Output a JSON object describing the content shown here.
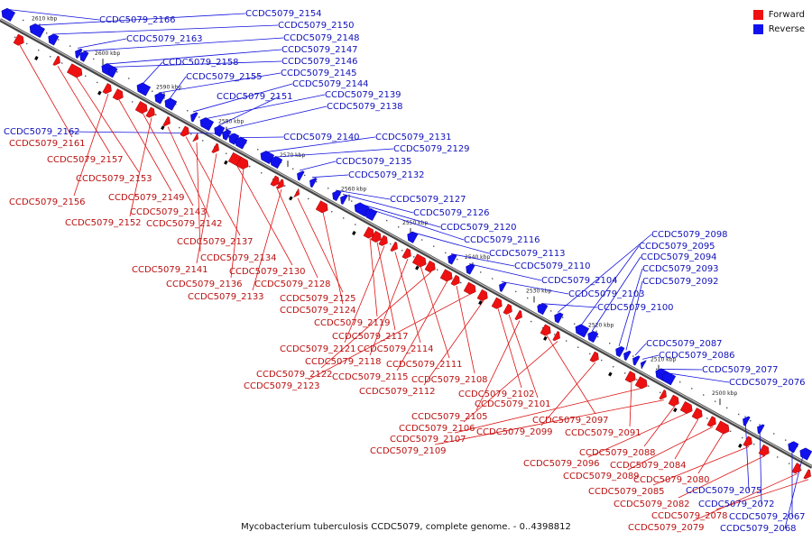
{
  "colors": {
    "forward": "#ee1111",
    "reverse": "#1111ee",
    "backbone": "#777777"
  },
  "legend": {
    "forward": "Forward",
    "reverse": "Reverse"
  },
  "caption": "Mycobacterium tuberculosis CCDC5079, complete genome. - 0..4398812",
  "ticks": [
    "2610 kbp",
    "2600 kbp",
    "2590 kbp",
    "2580 kbp",
    "2570 kbp",
    "2560 kbp",
    "2550 kbp",
    "2540 kbp",
    "2530 kbp",
    "2520 kbp",
    "2510 kbp",
    "2500 kbp"
  ],
  "reverse_genes": [
    "CCDC5079_2166",
    "CCDC5079_2154",
    "CCDC5079_2150",
    "CCDC5079_2163",
    "CCDC5079_2148",
    "CCDC5079_2147",
    "CCDC5079_2146",
    "CCDC5079_2158",
    "CCDC5079_2145",
    "CCDC5079_2155",
    "CCDC5079_2144",
    "CCDC5079_2139",
    "CCDC5079_2151",
    "CCDC5079_2138",
    "CCDC5079_2162",
    "CCDC5079_2140",
    "CCDC5079_2131",
    "CCDC5079_2129",
    "CCDC5079_2135",
    "CCDC5079_2132",
    "CCDC5079_2127",
    "CCDC5079_2126",
    "CCDC5079_2120",
    "CCDC5079_2116",
    "CCDC5079_2113",
    "CCDC5079_2110",
    "CCDC5079_2104",
    "CCDC5079_2103",
    "CCDC5079_2100",
    "CCDC5079_2098",
    "CCDC5079_2095",
    "CCDC5079_2094",
    "CCDC5079_2093",
    "CCDC5079_2092",
    "CCDC5079_2087",
    "CCDC5079_2086",
    "CCDC5079_2077",
    "CCDC5079_2076",
    "CCDC5079_2075",
    "CCDC5079_2072",
    "CCDC5079_2067",
    "CCDC5079_2068"
  ],
  "forward_genes": [
    "CCDC5079_2161",
    "CCDC5079_2157",
    "CCDC5079_2153",
    "CCDC5079_2156",
    "CCDC5079_2149",
    "CCDC5079_2143",
    "CCDC5079_2152",
    "CCDC5079_2142",
    "CCDC5079_2137",
    "CCDC5079_2134",
    "CCDC5079_2141",
    "CCDC5079_2130",
    "CCDC5079_2136",
    "CCDC5079_2128",
    "CCDC5079_2133",
    "CCDC5079_2125",
    "CCDC5079_2124",
    "CCDC5079_2119",
    "CCDC5079_2117",
    "CCDC5079_2121",
    "CCDC5079_2114",
    "CCDC5079_2118",
    "CCDC5079_2111",
    "CCDC5079_2122",
    "CCDC5079_2115",
    "CCDC5079_2108",
    "CCDC5079_2123",
    "CCDC5079_2112",
    "CCDC5079_2102",
    "CCDC5079_2101",
    "CCDC5079_2105",
    "CCDC5079_2097",
    "CCDC5079_2106",
    "CCDC5079_2099",
    "CCDC5079_2091",
    "CCDC5079_2107",
    "CCDC5079_2109",
    "CCDC5079_2088",
    "CCDC5079_2096",
    "CCDC5079_2084",
    "CCDC5079_2089",
    "CCDC5079_2080",
    "CCDC5079_2085",
    "CCDC5079_2082",
    "CCDC5079_2078",
    "CCDC5079_2079"
  ]
}
